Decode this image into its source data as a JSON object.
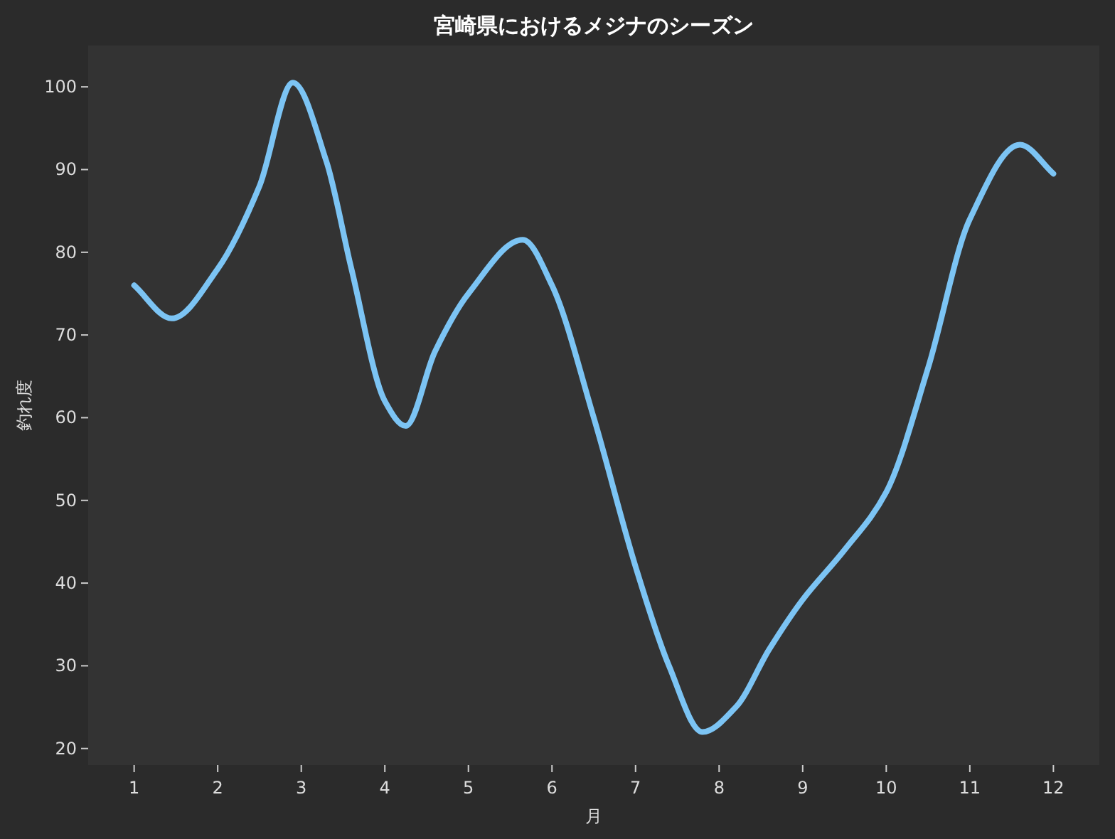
{
  "chart_data": {
    "type": "line",
    "title": "宮崎県におけるメジナのシーズン",
    "xlabel": "月",
    "ylabel": "釣れ度",
    "series": [
      {
        "color": "#7cc4f4",
        "x": [
          1,
          1.45,
          2,
          2.5,
          2.9,
          3.3,
          3.6,
          4,
          4.25,
          4.6,
          5,
          5.65,
          6,
          6.5,
          7,
          7.4,
          7.8,
          8.2,
          8.6,
          9,
          9.5,
          10,
          10.5,
          11,
          11.6,
          12
        ],
        "values": [
          76,
          72,
          78,
          88,
          100.5,
          91,
          78,
          62,
          59,
          68,
          75,
          81.5,
          76,
          60,
          42,
          30,
          22,
          25,
          32,
          38,
          44,
          51,
          66,
          84,
          93,
          89.5
        ]
      }
    ],
    "xlim": [
      0.45,
      12.55
    ],
    "ylim": [
      18,
      105
    ],
    "xticks": [
      1,
      2,
      3,
      4,
      5,
      6,
      7,
      8,
      9,
      10,
      11,
      12
    ],
    "yticks": [
      20,
      30,
      40,
      50,
      60,
      70,
      80,
      90,
      100
    ],
    "marker": "none",
    "line_style": "solid"
  }
}
